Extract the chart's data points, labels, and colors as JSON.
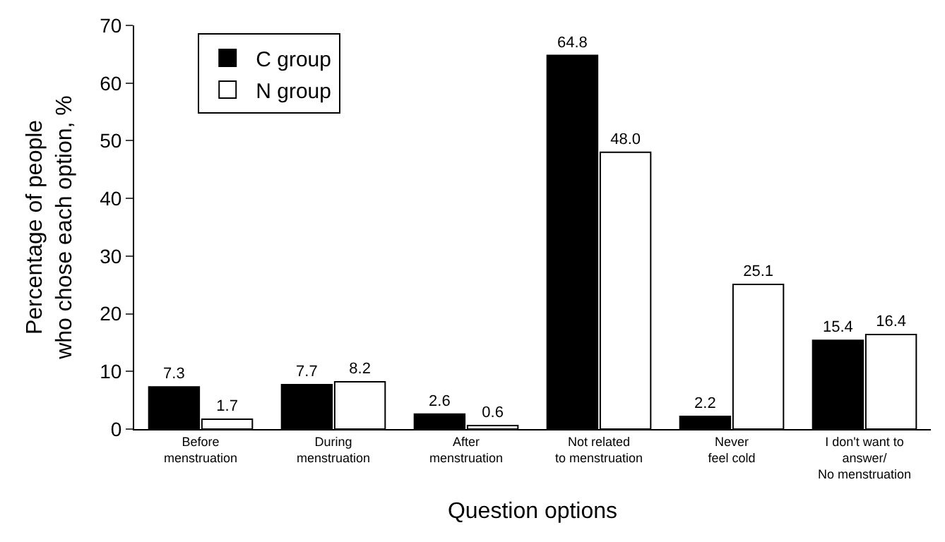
{
  "chart_data": {
    "type": "bar",
    "xlabel": "Question options",
    "ylabel": "Percentage of people\nwho chose each option, %",
    "categories": [
      "Before\nmenstruation",
      "During\nmenstruation",
      "After\nmenstruation",
      "Not related\nto menstruation",
      "Never\nfeel cold",
      "I don't want to\nanswer/\nNo menstruation"
    ],
    "series": [
      {
        "name": "C group",
        "color": "#000000",
        "values": [
          7.3,
          7.7,
          2.6,
          64.8,
          2.2,
          15.4
        ],
        "value_labels": [
          "7.3",
          "7.7",
          "2.6",
          "64.8",
          "2.2",
          "15.4"
        ]
      },
      {
        "name": "N group",
        "color": "#ffffff",
        "values": [
          1.7,
          8.2,
          0.6,
          48.0,
          25.1,
          16.4
        ],
        "value_labels": [
          "1.7",
          "8.2",
          "0.6",
          "48.0",
          "25.1",
          "16.4"
        ]
      }
    ],
    "ylim": [
      0,
      70
    ],
    "yticks": [
      0,
      10,
      20,
      30,
      40,
      50,
      60,
      70
    ],
    "legend": "top left"
  }
}
